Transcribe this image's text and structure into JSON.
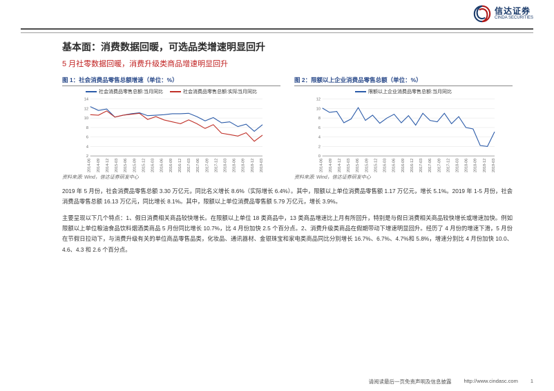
{
  "brand": {
    "cn": "信达证券",
    "en": "CINDA SECURITIES"
  },
  "title1": "基本面：消费数据回暖，可选品类增速明显回升",
  "title2": "5 月社零数据回暖，消费升级类商品增速明显回升",
  "chart1": {
    "title": "图 1：社会消费品零售总额增速（单位：%）",
    "type": "line",
    "legend": [
      {
        "label": "社会消费品零售总额:当月同比",
        "color": "#2a5aa8"
      },
      {
        "label": "社会消费品零售总额:实际当月同比",
        "color": "#c03028"
      }
    ],
    "x_labels": [
      "2014-06",
      "2014-09",
      "2014-12",
      "2015-03",
      "2015-06",
      "2015-09",
      "2015-12",
      "2016-03",
      "2016-06",
      "2016-09",
      "2016-12",
      "2017-03",
      "2017-06",
      "2017-09",
      "2017-12",
      "2018-03",
      "2018-06",
      "2018-09",
      "2018-12",
      "2019-03"
    ],
    "ylim": [
      2,
      14
    ],
    "ytick_step": 2,
    "series1": [
      12.4,
      11.6,
      11.9,
      10.2,
      10.6,
      10.9,
      11.1,
      10.5,
      10.6,
      10.7,
      10.9,
      10.9,
      11.0,
      10.3,
      9.4,
      10.1,
      9.0,
      9.2,
      8.2,
      8.7,
      7.2,
      8.6
    ],
    "series2": [
      10.7,
      10.6,
      11.5,
      10.2,
      10.6,
      10.8,
      11.0,
      9.7,
      10.3,
      9.6,
      9.2,
      8.8,
      9.6,
      8.8,
      7.8,
      8.6,
      6.8,
      6.5,
      6.2,
      6.9,
      5.1,
      6.4
    ],
    "background_color": "#ffffff",
    "grid_color": "#e0e0e0",
    "line_width": 1.2,
    "source": "资料来源: Wind，信达证券研发中心"
  },
  "chart2": {
    "title": "图 2：限额以上企业消费品零售总额（单位：%）",
    "type": "line",
    "legend": [
      {
        "label": "限额以上企业消费品零售总额:当月同比",
        "color": "#2a5aa8"
      }
    ],
    "x_labels": [
      "2014-06",
      "2014-09",
      "2014-12",
      "2015-03",
      "2015-06",
      "2015-09",
      "2015-12",
      "2016-03",
      "2016-06",
      "2016-09",
      "2016-12",
      "2017-03",
      "2017-06",
      "2017-09",
      "2017-12",
      "2018-03",
      "2018-06",
      "2018-09",
      "2018-12",
      "2019-03"
    ],
    "ylim": [
      0,
      12
    ],
    "ytick_step": 2,
    "series1": [
      10.1,
      9.2,
      9.4,
      7.0,
      7.8,
      10.2,
      7.5,
      8.6,
      6.9,
      8.0,
      8.8,
      7.0,
      8.5,
      6.5,
      9.0,
      7.5,
      7.2,
      9.0,
      6.8,
      8.3,
      6.0,
      5.7,
      2.2,
      2.0,
      5.1
    ],
    "background_color": "#ffffff",
    "grid_color": "#e0e0e0",
    "line_width": 1.2,
    "source": "资料来源: Wind，信达证券研发中心"
  },
  "para1": "2019 年 5 月份，社会消费品零售总额 3.30 万亿元，同比名义增长 8.6%（实际增长 6.4%）。其中，限额以上单位消费品零售额 1.17 万亿元，增长 5.1%。2019 年 1-5 月份，社会消费品零售总额 16.13 万亿元，同比增长 8.1%。其中，限额以上单位消费品零售额 5.79 万亿元，增长 3.9%。",
  "para2": "主要呈现以下几个特点：1、假日消费相关商品较快增长。在限额以上单位 18 类商品中，13 类商品增速比上月有所回升，特别是与假日消费相关商品较快增长或增速加快。例如限额以上单位粮油食品饮料烟酒类商品 5 月份同比增长 10.7%，比 4 月份加快 2.5 个百分点。2、消费升级类商品在假期带动下增速明显回升。经历了 4 月份的增速下滑，5 月份在节假日拉动下，与消费升级有关的单位商品零售品类，化妆品、通讯器材、金银珠宝和家电类商品同比分别增长 16.7%、6.7%、4.7%和 5.8%，增速分别比 4 月份加快 10.0、4.6、4.3 和 2.6 个百分点。",
  "footer_disclaimer": "请阅读最后一页免责声明及信息披露",
  "footer_url": "http://www.cindasc.com",
  "page_num": "1"
}
